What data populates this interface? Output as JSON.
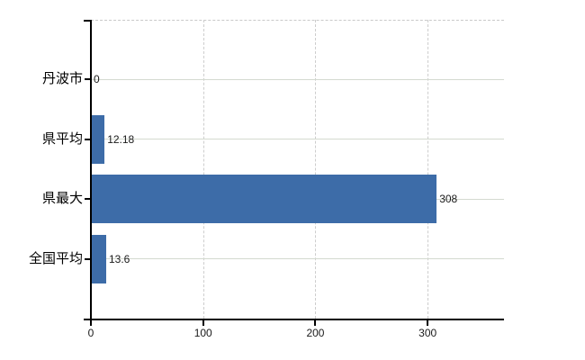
{
  "chart": {
    "background_color": "#ffffff",
    "bar_color": "#3d6ca8",
    "h_gridline_color": "#d4dad0",
    "v_gridline_color": "#cdcdcd",
    "axis_color": "#000000",
    "category_label_color": "#000000",
    "tick_label_color": "#1a1a1a",
    "value_label_color": "#1a1a1a"
  },
  "chart_data": {
    "type": "bar",
    "orientation": "horizontal",
    "categories": [
      "丹波市",
      "県平均",
      "県最大",
      "全国平均"
    ],
    "values": [
      0,
      12.18,
      308,
      13.6
    ],
    "value_labels": [
      "0",
      "12.18",
      "308",
      "13.6"
    ],
    "xticks": [
      0,
      100,
      200,
      300
    ],
    "xtick_labels": [
      "0",
      "100",
      "200",
      "300"
    ],
    "xlim": [
      0,
      368
    ],
    "title": "",
    "xlabel": "",
    "ylabel": "",
    "grid": true,
    "legend": false
  }
}
